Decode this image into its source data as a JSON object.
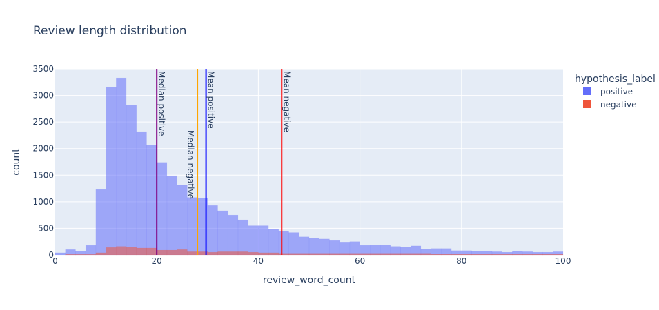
{
  "chart_data": {
    "type": "bar",
    "barmode": "overlay",
    "title": "Review length distribution",
    "xlabel": "review_word_count",
    "ylabel": "count",
    "xlim": [
      0,
      100
    ],
    "ylim": [
      0,
      3500
    ],
    "x_ticks": [
      0,
      20,
      40,
      60,
      80,
      100
    ],
    "y_ticks": [
      0,
      500,
      1000,
      1500,
      2000,
      2500,
      3000,
      3500
    ],
    "grid": true,
    "bin_width": 2,
    "bin_starts": [
      0,
      2,
      4,
      6,
      8,
      10,
      12,
      14,
      16,
      18,
      20,
      22,
      24,
      26,
      28,
      30,
      32,
      34,
      36,
      38,
      40,
      42,
      44,
      46,
      48,
      50,
      52,
      54,
      56,
      58,
      60,
      62,
      64,
      66,
      68,
      70,
      72,
      74,
      76,
      78,
      80,
      82,
      84,
      86,
      88,
      90,
      92,
      94,
      96,
      98
    ],
    "legend_title": "hypothesis_label",
    "legend_position": "top-right",
    "series": [
      {
        "name": "positive",
        "color": "#636efa",
        "values": [
          40,
          100,
          70,
          180,
          1230,
          3160,
          3330,
          2820,
          2320,
          2070,
          1740,
          1490,
          1310,
          1080,
          1070,
          930,
          830,
          750,
          660,
          550,
          550,
          480,
          440,
          420,
          340,
          320,
          300,
          270,
          230,
          250,
          180,
          190,
          190,
          160,
          150,
          170,
          110,
          120,
          120,
          80,
          80,
          70,
          70,
          60,
          50,
          70,
          60,
          50,
          50,
          60
        ]
      },
      {
        "name": "negative",
        "color": "#EF553B",
        "values": [
          0,
          10,
          10,
          10,
          40,
          140,
          160,
          150,
          130,
          130,
          90,
          90,
          100,
          60,
          60,
          50,
          60,
          60,
          60,
          50,
          40,
          40,
          30,
          30,
          30,
          30,
          30,
          30,
          30,
          30,
          30,
          30,
          30,
          30,
          30,
          30,
          30,
          20,
          20,
          20,
          20,
          20,
          20,
          20,
          20,
          20,
          20,
          20,
          20,
          20
        ]
      }
    ],
    "vertical_lines": [
      {
        "label": "Median positive",
        "x": 20,
        "color": "#800080"
      },
      {
        "label": "Median negative",
        "x": 28,
        "color": "#FFA500"
      },
      {
        "label": "Mean positive",
        "x": 29.7,
        "color": "#0000FF"
      },
      {
        "label": "Mean negative",
        "x": 44.6,
        "color": "#FF0000"
      }
    ]
  }
}
